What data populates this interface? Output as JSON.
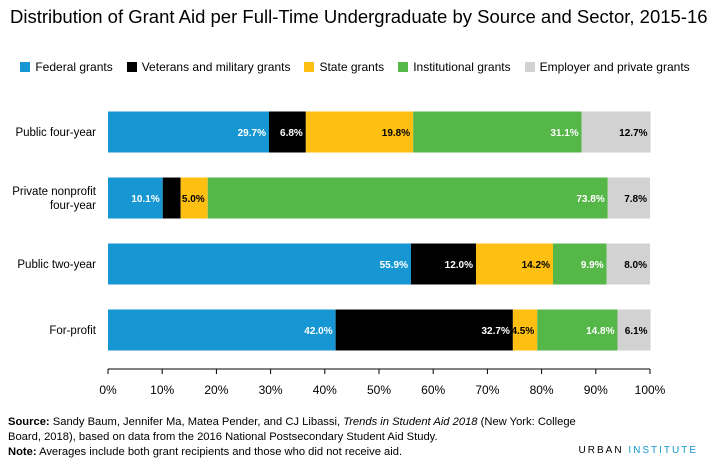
{
  "title": "Distribution of Grant Aid per Full-Time Undergraduate by Source and Sector, 2015-16",
  "footer": {
    "source_label": "Source:",
    "source_pre": " Sandy Baum, Jennifer Ma, Matea Pender, and CJ Libassi, ",
    "source_italic": "Trends in Student Aid 2018",
    "source_post": " (New York: College Board, 2018), based on data from the 2016 National Postsecondary Student Aid Study.",
    "note_label": "Note:",
    "note_text": " Averages include both grant recipients and those who did not receive aid."
  },
  "brand": {
    "part1": "URBAN ",
    "part2": "INSTITUTE"
  },
  "chart_data": {
    "type": "bar",
    "orientation": "horizontal",
    "stacked": true,
    "categories": [
      "Public four-year",
      "Private nonprofit four-year",
      "Public two-year",
      "For-profit"
    ],
    "category_lines": [
      [
        "Public four-year"
      ],
      [
        "Private nonprofit",
        "four-year"
      ],
      [
        "Public two-year"
      ],
      [
        "For-profit"
      ]
    ],
    "series": [
      {
        "name": "Federal grants",
        "color": "#1696d2",
        "label_color": "#ffffff",
        "values": [
          29.7,
          10.1,
          55.9,
          42.0
        ],
        "labels": [
          "29.7%",
          "10.1%",
          "55.9%",
          "42.0%"
        ]
      },
      {
        "name": "Veterans and military grants",
        "color": "#000000",
        "label_color": "#ffffff",
        "values": [
          6.8,
          3.3,
          12.0,
          32.7
        ],
        "labels": [
          "6.8%",
          "",
          "12.0%",
          "32.7%"
        ]
      },
      {
        "name": "State grants",
        "color": "#fdbf11",
        "label_color": "#000000",
        "values": [
          19.8,
          5.0,
          14.2,
          4.5
        ],
        "labels": [
          "19.8%",
          "5.0%",
          "14.2%",
          "4.5%"
        ]
      },
      {
        "name": "Institutional grants",
        "color": "#55b748",
        "label_color": "#ffffff",
        "values": [
          31.1,
          73.8,
          9.9,
          14.8
        ],
        "labels": [
          "31.1%",
          "73.8%",
          "9.9%",
          "14.8%"
        ]
      },
      {
        "name": "Employer and private grants",
        "color": "#d2d2d2",
        "label_color": "#000000",
        "values": [
          12.7,
          7.8,
          8.0,
          6.1
        ],
        "labels": [
          "12.7%",
          "7.8%",
          "8.0%",
          "6.1%"
        ]
      }
    ],
    "x_ticks": [
      0,
      10,
      20,
      30,
      40,
      50,
      60,
      70,
      80,
      90,
      100
    ],
    "x_tick_labels": [
      "0%",
      "10%",
      "20%",
      "30%",
      "40%",
      "50%",
      "60%",
      "70%",
      "80%",
      "90%",
      "100%"
    ],
    "xlim": [
      0,
      100
    ],
    "grid": false,
    "legend_position": "top"
  }
}
